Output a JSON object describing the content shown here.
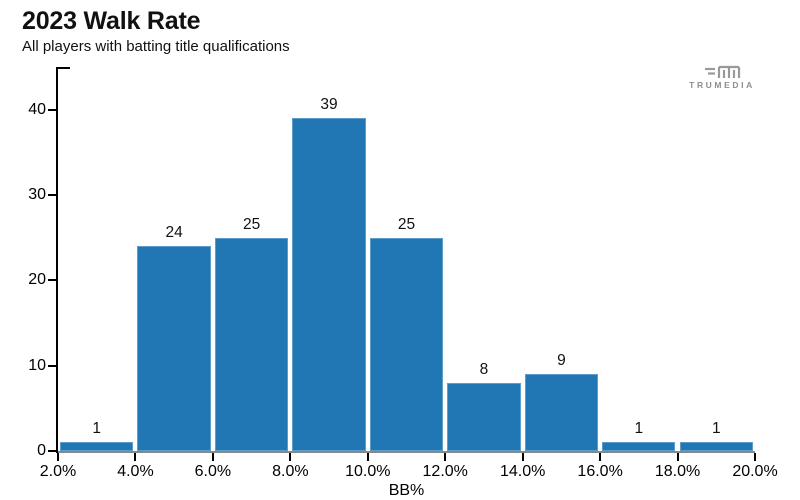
{
  "header": {
    "title": "2023 Walk Rate",
    "subtitle": "All players with batting title qualifications"
  },
  "logo": {
    "text": "TRUMEDIA",
    "color": "#8e8e8e"
  },
  "chart_data": {
    "type": "bar",
    "subtype": "histogram",
    "title": "2023 Walk Rate",
    "subtitle": "All players with batting title qualifications",
    "xlabel": "BB%",
    "ylabel": "",
    "bin_edges_percent": [
      2.0,
      4.0,
      6.0,
      8.0,
      10.0,
      12.0,
      14.0,
      16.0,
      18.0,
      20.0
    ],
    "values": [
      1,
      24,
      25,
      39,
      25,
      8,
      9,
      1,
      1
    ],
    "bar_value_labels": [
      "1",
      "24",
      "25",
      "39",
      "25",
      "8",
      "9",
      "1",
      "1"
    ],
    "x_tick_labels": [
      "2.0%",
      "4.0%",
      "6.0%",
      "8.0%",
      "10.0%",
      "12.0%",
      "14.0%",
      "16.0%",
      "18.0%",
      "20.0%"
    ],
    "x_tick_values": [
      2,
      4,
      6,
      8,
      10,
      12,
      14,
      16,
      18,
      20
    ],
    "y_ticks": [
      0,
      10,
      20,
      30,
      40
    ],
    "xlim_percent": [
      2,
      20
    ],
    "ylim": [
      0,
      45
    ],
    "grid": false,
    "legend": "none",
    "bar_color": "#2077b4",
    "axis_color": "#000000",
    "baseline_color": "#888888"
  }
}
